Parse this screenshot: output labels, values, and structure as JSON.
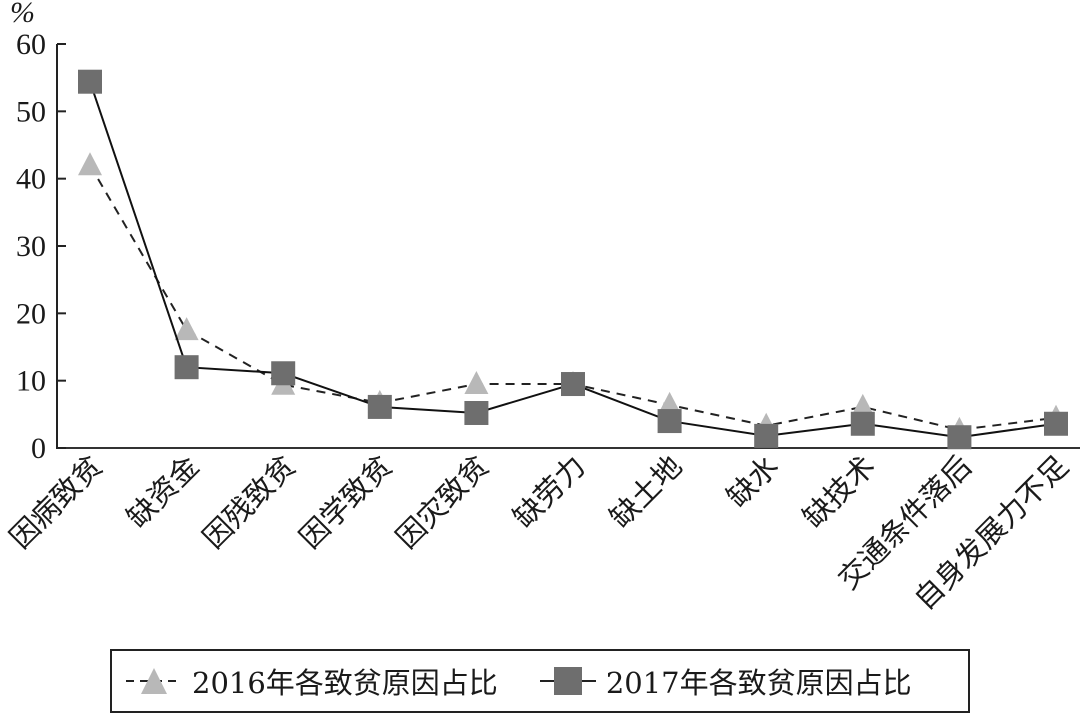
{
  "chart_data": {
    "type": "line",
    "title": "",
    "xlabel": "",
    "ylabel": "%",
    "ylim": [
      0,
      60
    ],
    "yticks": [
      0,
      10,
      20,
      30,
      40,
      50,
      60
    ],
    "grid": false,
    "legend_position": "bottom",
    "categories": [
      "因病致贫",
      "缺资金",
      "因残致贫",
      "因学致贫",
      "因灾致贫",
      "缺劳力",
      "缺土地",
      "缺水",
      "缺技术",
      "交通条件落后",
      "自身发展力不足"
    ],
    "series": [
      {
        "name": "2016年各致贫原因占比",
        "marker": "triangle",
        "line": "dashed",
        "color": "#b8b8b8",
        "values": [
          42.0,
          17.5,
          9.4,
          6.7,
          9.5,
          9.5,
          6.4,
          3.3,
          6.1,
          2.7,
          4.5
        ]
      },
      {
        "name": "2017年各致贫原因占比",
        "marker": "square",
        "line": "solid",
        "color": "#6e6e6e",
        "values": [
          54.4,
          12.0,
          11.1,
          6.1,
          5.2,
          9.5,
          4.0,
          1.8,
          3.6,
          1.6,
          3.6
        ]
      }
    ]
  },
  "legend": {
    "item_2016": "2016年各致贫原因占比",
    "item_2017": "2017年各致贫原因占比"
  },
  "axis": {
    "y_unit": "%"
  }
}
